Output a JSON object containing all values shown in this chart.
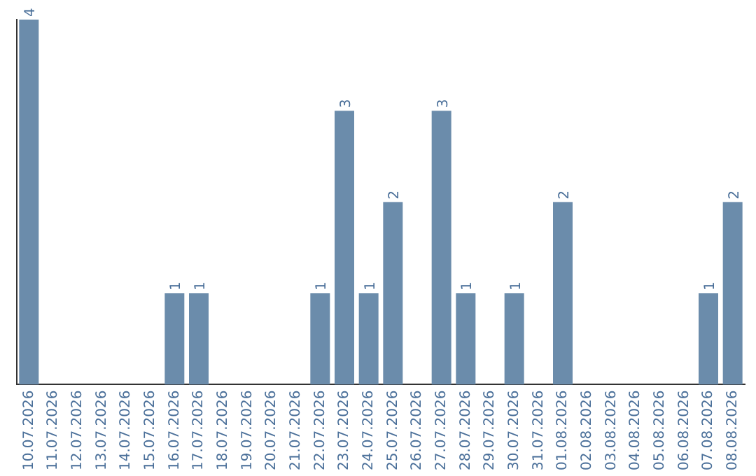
{
  "chart_data": {
    "type": "bar",
    "categories": [
      "10.07.2026",
      "11.07.2026",
      "12.07.2026",
      "13.07.2026",
      "14.07.2026",
      "15.07.2026",
      "16.07.2026",
      "17.07.2026",
      "18.07.2026",
      "19.07.2026",
      "20.07.2026",
      "21.07.2026",
      "22.07.2026",
      "23.07.2026",
      "24.07.2026",
      "25.07.2026",
      "26.07.2026",
      "27.07.2026",
      "28.07.2026",
      "29.07.2026",
      "30.07.2026",
      "31.07.2026",
      "01.08.2026",
      "02.08.2026",
      "03.08.2026",
      "04.08.2026",
      "05.08.2026",
      "06.08.2026",
      "07.08.2026",
      "08.08.2026"
    ],
    "values": [
      4,
      0,
      0,
      0,
      0,
      0,
      1,
      1,
      0,
      0,
      0,
      0,
      1,
      3,
      1,
      2,
      0,
      3,
      1,
      0,
      1,
      0,
      2,
      0,
      0,
      0,
      0,
      0,
      1,
      2
    ],
    "value_labels": [
      "4",
      null,
      null,
      null,
      null,
      null,
      "1",
      "1",
      null,
      null,
      null,
      null,
      "1",
      "3",
      "1",
      "2",
      null,
      "3",
      "1",
      null,
      "1",
      null,
      "2",
      null,
      null,
      null,
      null,
      null,
      "1",
      "2"
    ],
    "color": "#6b8cab",
    "grid": false,
    "legend": false
  }
}
